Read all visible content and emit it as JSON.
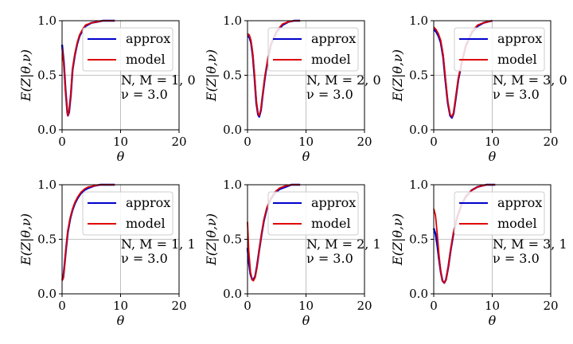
{
  "chart_data": [
    {
      "type": "line",
      "xlabel": "θ",
      "ylabel": "E(Z|θ,ν)",
      "xlim": [
        0,
        20
      ],
      "ylim": [
        0.0,
        1.0
      ],
      "xticks": [
        "0",
        "10",
        "20"
      ],
      "yticks": [
        "0.0",
        "0.5",
        "1.0"
      ],
      "grid": true,
      "legend": "upper-right",
      "annotation": [
        "N, M = 1, 0",
        "ν = 3.0"
      ],
      "series": [
        {
          "name": "approx",
          "color": "#0000cc",
          "x": [
            0,
            0.3,
            0.6,
            0.9,
            1.0,
            1.2,
            1.5,
            1.8,
            2.2,
            2.6,
            3.0,
            3.5,
            4.0,
            5.0,
            6.0,
            7.0,
            8.0,
            9.0
          ],
          "y": [
            0.78,
            0.62,
            0.36,
            0.16,
            0.13,
            0.16,
            0.32,
            0.55,
            0.69,
            0.79,
            0.86,
            0.91,
            0.95,
            0.98,
            0.99,
            1.0,
            1.0,
            1.0
          ]
        },
        {
          "name": "model",
          "color": "#dd0000",
          "x": [
            0,
            0.3,
            0.6,
            0.9,
            1.0,
            1.2,
            1.5,
            1.8,
            2.2,
            2.6,
            3.0,
            3.5,
            4.0,
            5.0,
            6.0,
            7.0,
            8.0,
            9.0
          ],
          "y": [
            0.75,
            0.6,
            0.35,
            0.16,
            0.13,
            0.17,
            0.33,
            0.56,
            0.7,
            0.8,
            0.87,
            0.92,
            0.96,
            0.98,
            0.99,
            1.0,
            1.0,
            1.0
          ]
        }
      ]
    },
    {
      "type": "line",
      "xlabel": "θ",
      "ylabel": "E(Z|θ,ν)",
      "xlim": [
        0,
        20
      ],
      "ylim": [
        0.0,
        1.0
      ],
      "xticks": [
        "0",
        "10",
        "20"
      ],
      "yticks": [
        "0.0",
        "0.5",
        "1.0"
      ],
      "grid": true,
      "legend": "upper-right",
      "annotation": [
        "N, M = 2, 0",
        "ν = 3.0"
      ],
      "series": [
        {
          "name": "approx",
          "color": "#0000cc",
          "x": [
            0,
            0.3,
            0.6,
            0.9,
            1.2,
            1.5,
            1.8,
            2.0,
            2.3,
            2.6,
            3.0,
            3.5,
            4.0,
            5.0,
            6.0,
            7.0,
            8.0,
            9.0
          ],
          "y": [
            0.86,
            0.85,
            0.8,
            0.68,
            0.48,
            0.25,
            0.14,
            0.12,
            0.18,
            0.32,
            0.49,
            0.65,
            0.78,
            0.9,
            0.96,
            0.99,
            1.0,
            1.0
          ]
        },
        {
          "name": "model",
          "color": "#dd0000",
          "x": [
            0,
            0.3,
            0.6,
            0.9,
            1.2,
            1.5,
            1.8,
            2.0,
            2.3,
            2.6,
            3.0,
            3.5,
            4.0,
            5.0,
            6.0,
            7.0,
            8.0,
            9.0
          ],
          "y": [
            0.88,
            0.87,
            0.82,
            0.7,
            0.5,
            0.27,
            0.15,
            0.13,
            0.19,
            0.33,
            0.5,
            0.66,
            0.79,
            0.91,
            0.97,
            0.99,
            1.0,
            1.0
          ]
        }
      ]
    },
    {
      "type": "line",
      "xlabel": "θ",
      "ylabel": "E(Z|θ,ν)",
      "xlim": [
        0,
        20
      ],
      "ylim": [
        0.0,
        1.0
      ],
      "xticks": [
        "0",
        "10",
        "20"
      ],
      "yticks": [
        "0.0",
        "0.5",
        "1.0"
      ],
      "grid": true,
      "legend": "upper-right",
      "annotation": [
        "N, M = 3, 0",
        "ν = 3.0"
      ],
      "series": [
        {
          "name": "approx",
          "color": "#0000cc",
          "x": [
            0,
            0.4,
            0.8,
            1.2,
            1.6,
            2.0,
            2.4,
            2.8,
            3.1,
            3.4,
            3.8,
            4.2,
            4.8,
            5.5,
            6.5,
            7.5,
            8.5,
            10.0
          ],
          "y": [
            0.92,
            0.9,
            0.86,
            0.8,
            0.67,
            0.45,
            0.25,
            0.13,
            0.11,
            0.15,
            0.3,
            0.46,
            0.62,
            0.77,
            0.89,
            0.95,
            0.98,
            1.0
          ]
        },
        {
          "name": "model",
          "color": "#dd0000",
          "x": [
            0,
            0.4,
            0.8,
            1.2,
            1.6,
            2.0,
            2.4,
            2.8,
            3.1,
            3.4,
            3.8,
            4.2,
            4.8,
            5.5,
            6.5,
            7.5,
            8.5,
            10.0
          ],
          "y": [
            0.94,
            0.92,
            0.88,
            0.82,
            0.69,
            0.47,
            0.26,
            0.14,
            0.12,
            0.16,
            0.31,
            0.47,
            0.63,
            0.78,
            0.9,
            0.96,
            0.98,
            1.0
          ]
        }
      ]
    },
    {
      "type": "line",
      "xlabel": "θ",
      "ylabel": "E(Z|θ,ν)",
      "xlim": [
        0,
        20
      ],
      "ylim": [
        0.0,
        1.0
      ],
      "xticks": [
        "0",
        "10",
        "20"
      ],
      "yticks": [
        "0.0",
        "0.5",
        "1.0"
      ],
      "grid": true,
      "legend": "upper-right",
      "annotation": [
        "N, M = 1, 1",
        "ν = 3.0"
      ],
      "series": [
        {
          "name": "approx",
          "color": "#0000cc",
          "x": [
            0,
            0.2,
            0.4,
            0.7,
            1.0,
            1.4,
            1.8,
            2.2,
            2.7,
            3.2,
            3.8,
            4.5,
            5.5,
            6.5,
            7.5,
            9.0
          ],
          "y": [
            0.13,
            0.15,
            0.25,
            0.42,
            0.57,
            0.69,
            0.77,
            0.83,
            0.88,
            0.92,
            0.95,
            0.97,
            0.99,
            1.0,
            1.0,
            1.0
          ]
        },
        {
          "name": "model",
          "color": "#dd0000",
          "x": [
            0,
            0.2,
            0.4,
            0.7,
            1.0,
            1.4,
            1.8,
            2.2,
            2.7,
            3.2,
            3.8,
            4.5,
            5.5,
            6.5,
            7.5,
            9.0
          ],
          "y": [
            0.12,
            0.14,
            0.24,
            0.43,
            0.58,
            0.7,
            0.78,
            0.84,
            0.89,
            0.93,
            0.96,
            0.98,
            0.99,
            1.0,
            1.0,
            1.0
          ]
        }
      ]
    },
    {
      "type": "line",
      "xlabel": "θ",
      "ylabel": "E(Z|θ,ν)",
      "xlim": [
        0,
        20
      ],
      "ylim": [
        0.0,
        1.0
      ],
      "xticks": [
        "0",
        "10",
        "20"
      ],
      "yticks": [
        "0.0",
        "0.5",
        "1.0"
      ],
      "grid": true,
      "legend": "upper-right",
      "annotation": [
        "N, M = 2, 1",
        "ν = 3.0"
      ],
      "series": [
        {
          "name": "approx",
          "color": "#0000cc",
          "x": [
            0,
            0.2,
            0.5,
            0.8,
            1.0,
            1.3,
            1.6,
            2.0,
            2.4,
            2.8,
            3.3,
            3.9,
            4.6,
            5.5,
            6.5,
            7.5,
            9.0
          ],
          "y": [
            0.42,
            0.3,
            0.18,
            0.13,
            0.13,
            0.16,
            0.25,
            0.4,
            0.54,
            0.67,
            0.78,
            0.86,
            0.92,
            0.96,
            0.98,
            1.0,
            1.0
          ]
        },
        {
          "name": "model",
          "color": "#dd0000",
          "x": [
            0,
            0.2,
            0.5,
            0.8,
            1.0,
            1.3,
            1.6,
            2.0,
            2.4,
            2.8,
            3.3,
            3.9,
            4.6,
            5.5,
            6.5,
            7.5,
            9.0
          ],
          "y": [
            0.66,
            0.4,
            0.2,
            0.13,
            0.12,
            0.15,
            0.24,
            0.4,
            0.55,
            0.68,
            0.79,
            0.87,
            0.93,
            0.97,
            0.99,
            1.0,
            1.0
          ]
        }
      ]
    },
    {
      "type": "line",
      "xlabel": "θ",
      "ylabel": "E(Z|θ,ν)",
      "xlim": [
        0,
        20
      ],
      "ylim": [
        0.0,
        1.0
      ],
      "xticks": [
        "0",
        "10",
        "20"
      ],
      "yticks": [
        "0.0",
        "0.5",
        "1.0"
      ],
      "grid": true,
      "legend": "upper-right",
      "annotation": [
        "N, M = 3, 1",
        "ν = 3.0"
      ],
      "series": [
        {
          "name": "approx",
          "color": "#0000cc",
          "x": [
            0,
            0.3,
            0.6,
            0.9,
            1.2,
            1.5,
            1.8,
            2.1,
            2.5,
            2.9,
            3.4,
            4.0,
            4.7,
            5.5,
            6.5,
            7.5,
            9.0,
            10.5
          ],
          "y": [
            0.6,
            0.55,
            0.45,
            0.32,
            0.2,
            0.12,
            0.1,
            0.13,
            0.25,
            0.4,
            0.56,
            0.7,
            0.81,
            0.89,
            0.95,
            0.98,
            1.0,
            1.0
          ]
        },
        {
          "name": "model",
          "color": "#dd0000",
          "x": [
            0,
            0.3,
            0.6,
            0.9,
            1.2,
            1.5,
            1.8,
            2.1,
            2.5,
            2.9,
            3.4,
            4.0,
            4.7,
            5.5,
            6.5,
            7.5,
            9.0,
            10.5
          ],
          "y": [
            0.78,
            0.72,
            0.55,
            0.36,
            0.2,
            0.12,
            0.1,
            0.13,
            0.25,
            0.41,
            0.57,
            0.71,
            0.82,
            0.9,
            0.95,
            0.98,
            1.0,
            1.0
          ]
        }
      ]
    }
  ]
}
